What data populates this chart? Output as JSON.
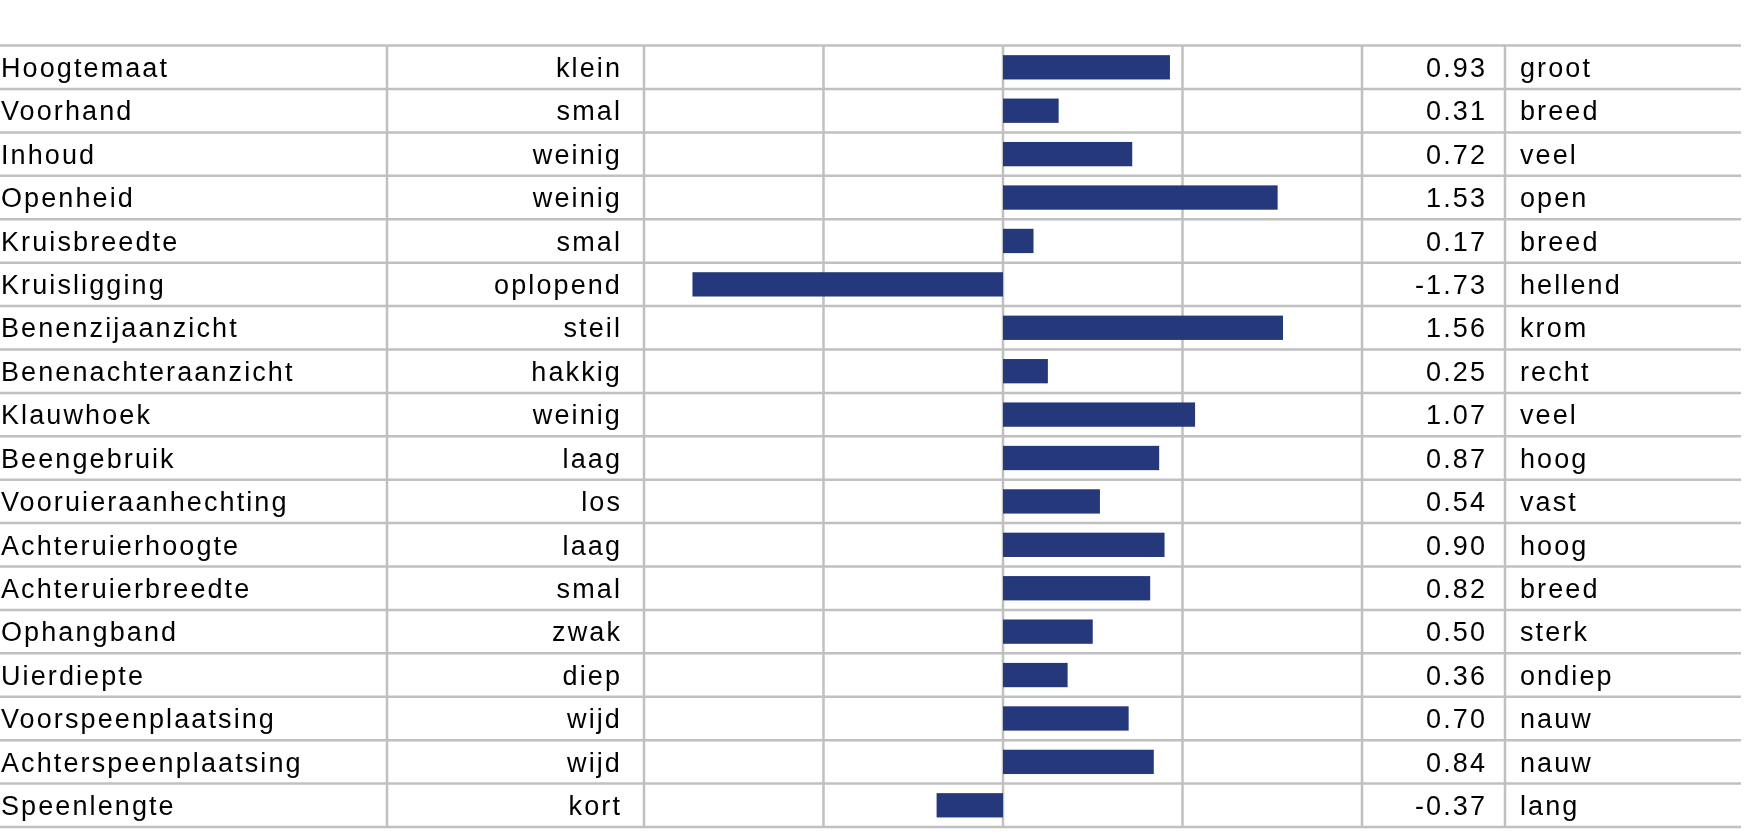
{
  "chart_data": {
    "type": "bar",
    "orientation": "horizontal",
    "categories": [
      "Hoogtemaat",
      "Voorhand",
      "Inhoud",
      "Openheid",
      "Kruisbreedte",
      "Kruisligging",
      "Benenzijaanzicht",
      "Benenachteraanzicht",
      "Klauwhoek",
      "Beengebruik",
      "Vooruieraanhechting",
      "Achteruierhoogte",
      "Achteruierbreedte",
      "Ophangband",
      "Uierdiepte",
      "Voorspeenplaatsing",
      "Achterspeenplaatsing",
      "Speenlengte"
    ],
    "values": [
      0.93,
      0.31,
      0.72,
      1.53,
      0.17,
      -1.73,
      1.56,
      0.25,
      1.07,
      0.87,
      0.54,
      0.9,
      0.82,
      0.5,
      0.36,
      0.7,
      0.84,
      -0.37
    ],
    "value_labels": [
      "0.93",
      "0.31",
      "0.72",
      "1.53",
      "0.17",
      "-1.73",
      "1.56",
      "0.25",
      "1.07",
      "0.87",
      "0.54",
      "0.90",
      "0.82",
      "0.50",
      "0.36",
      "0.70",
      "0.84",
      "-0.37"
    ],
    "color": "#26387c",
    "xlim": [
      -2,
      2
    ],
    "xticks": [
      {
        "value": -2,
        "label": null
      },
      {
        "value": -1,
        "label": null
      },
      {
        "value": 0,
        "label": null
      },
      {
        "value": 1,
        "label": null
      },
      {
        "value": 2,
        "label": null
      }
    ],
    "grid": true,
    "tick_labels": "y",
    "annotations": [
      "klein",
      "groot",
      "smal",
      "breed",
      "weinig",
      "veel",
      "weinig",
      "open",
      "smal",
      "breed",
      "oplopend",
      "hellend",
      "steil",
      "krom",
      "hakkig",
      "recht",
      "weinig",
      "veel",
      "laag",
      "hoog",
      "los",
      "vast",
      "laag",
      "hoog",
      "smal",
      "breed",
      "zwak",
      "sterk",
      "diep",
      "ondiep",
      "wijd",
      "nauw",
      "wijd",
      "nauw",
      "kort",
      "lang"
    ]
  }
}
